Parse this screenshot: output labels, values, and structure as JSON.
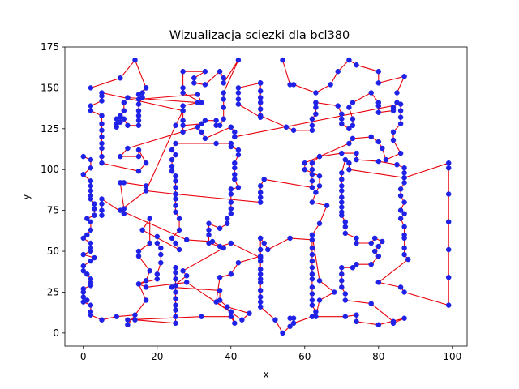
{
  "chart_data": {
    "type": "line",
    "title": "Wizualizacja sciezki dla bcl380",
    "xlabel": "x",
    "ylabel": "y",
    "xlim": [
      -5,
      104
    ],
    "ylim": [
      -8,
      175
    ],
    "xticks": [
      0,
      20,
      40,
      60,
      80,
      100
    ],
    "yticks": [
      0,
      25,
      50,
      75,
      100,
      125,
      150,
      175
    ],
    "grid": false,
    "legend": "none",
    "line_color": "#e8000b",
    "marker_face_color": "#1f22e6",
    "marker_edge_color": "#1f22e6",
    "path": [
      [
        2,
        150
      ],
      [
        10,
        156
      ],
      [
        14,
        167
      ],
      [
        17,
        150
      ],
      [
        15,
        146
      ],
      [
        15,
        143
      ],
      [
        31,
        146
      ],
      [
        32,
        141
      ],
      [
        27,
        147
      ],
      [
        27,
        150
      ],
      [
        27,
        160
      ],
      [
        33,
        160
      ],
      [
        30,
        156
      ],
      [
        30,
        153
      ],
      [
        33,
        152
      ],
      [
        37,
        160
      ],
      [
        38,
        156
      ],
      [
        38,
        153
      ],
      [
        42,
        167
      ],
      [
        38,
        147
      ],
      [
        38,
        143
      ],
      [
        38,
        138
      ],
      [
        38,
        131
      ],
      [
        37,
        127
      ],
      [
        36,
        127
      ],
      [
        36,
        130
      ],
      [
        33,
        130
      ],
      [
        32,
        128
      ],
      [
        27,
        127
      ],
      [
        27,
        123
      ],
      [
        27,
        130
      ],
      [
        27,
        136
      ],
      [
        27,
        139
      ],
      [
        31,
        141
      ],
      [
        12,
        144
      ],
      [
        11,
        141
      ],
      [
        11,
        136
      ],
      [
        10,
        132
      ],
      [
        10,
        129
      ],
      [
        9,
        126
      ],
      [
        9,
        128
      ],
      [
        9,
        131
      ],
      [
        10,
        133
      ],
      [
        11,
        131
      ],
      [
        12,
        127
      ],
      [
        15,
        127
      ],
      [
        15,
        130
      ],
      [
        15,
        133
      ],
      [
        15,
        136
      ],
      [
        15,
        140
      ],
      [
        16,
        144
      ],
      [
        16,
        147
      ],
      [
        17,
        150
      ]
    ],
    "path_b": [
      [
        48,
        153
      ],
      [
        48,
        148
      ],
      [
        48,
        144
      ],
      [
        48,
        141
      ],
      [
        48,
        137
      ],
      [
        48,
        132
      ],
      [
        42,
        140
      ],
      [
        42,
        143
      ],
      [
        42,
        147
      ],
      [
        42,
        150
      ],
      [
        48,
        153
      ]
    ],
    "path_c": [
      [
        54,
        167
      ],
      [
        56,
        152
      ],
      [
        57,
        152
      ],
      [
        63,
        147
      ],
      [
        67,
        152
      ],
      [
        69,
        160
      ],
      [
        72,
        167
      ],
      [
        74,
        164
      ],
      [
        80,
        160
      ],
      [
        80,
        153
      ],
      [
        87,
        157
      ],
      [
        85,
        147
      ],
      [
        85,
        141
      ],
      [
        84,
        138
      ],
      [
        84,
        136
      ],
      [
        80,
        135
      ],
      [
        80,
        139
      ],
      [
        80,
        141
      ],
      [
        78,
        147
      ],
      [
        73,
        141
      ],
      [
        72,
        138
      ],
      [
        73,
        131
      ],
      [
        73,
        127
      ],
      [
        72,
        125
      ],
      [
        70,
        128
      ],
      [
        70,
        131
      ],
      [
        70,
        134
      ],
      [
        69,
        139
      ],
      [
        63,
        141
      ],
      [
        63,
        138
      ],
      [
        63,
        134
      ],
      [
        62,
        131
      ],
      [
        62,
        127
      ],
      [
        62,
        124
      ],
      [
        57,
        124
      ],
      [
        55,
        126
      ],
      [
        48,
        133
      ]
    ],
    "left_col": [
      [
        0,
        108
      ],
      [
        2,
        106
      ],
      [
        2,
        101
      ],
      [
        0,
        97
      ],
      [
        2,
        93
      ],
      [
        2,
        90
      ],
      [
        2,
        87
      ],
      [
        2,
        84
      ],
      [
        2,
        82
      ],
      [
        3,
        79
      ],
      [
        3,
        76
      ],
      [
        3,
        72
      ],
      [
        1,
        70
      ],
      [
        2,
        68
      ],
      [
        2,
        63
      ],
      [
        1,
        60
      ],
      [
        0,
        58
      ],
      [
        2,
        55
      ],
      [
        2,
        52
      ],
      [
        2,
        50
      ],
      [
        0,
        48
      ],
      [
        3,
        46
      ],
      [
        2,
        44
      ],
      [
        0,
        41
      ],
      [
        0,
        38
      ],
      [
        1,
        36
      ],
      [
        2,
        33
      ],
      [
        2,
        31
      ],
      [
        2,
        29
      ],
      [
        0,
        27
      ],
      [
        0,
        25
      ],
      [
        0,
        22
      ],
      [
        1,
        20
      ],
      [
        0,
        19
      ],
      [
        2,
        17
      ],
      [
        2,
        13
      ],
      [
        2,
        11
      ],
      [
        5,
        8
      ],
      [
        9,
        10
      ],
      [
        14,
        11
      ],
      [
        14,
        8
      ],
      [
        25,
        6
      ],
      [
        25,
        10
      ],
      [
        25,
        14
      ],
      [
        25,
        17
      ],
      [
        25,
        21
      ],
      [
        25,
        25
      ],
      [
        25,
        29
      ],
      [
        25,
        33
      ],
      [
        25,
        37
      ],
      [
        25,
        40
      ]
    ],
    "extra_points": [
      [
        5,
        72
      ],
      [
        5,
        75
      ],
      [
        5,
        79
      ],
      [
        5,
        82
      ],
      [
        11,
        73
      ],
      [
        11,
        76
      ],
      [
        10,
        92
      ],
      [
        11,
        92
      ],
      [
        17,
        90
      ],
      [
        17,
        87
      ],
      [
        25,
        85
      ],
      [
        25,
        82
      ],
      [
        25,
        78
      ],
      [
        25,
        74
      ],
      [
        26,
        70
      ],
      [
        26,
        63
      ],
      [
        24,
        58
      ],
      [
        25,
        55
      ],
      [
        26,
        51
      ],
      [
        16,
        63
      ],
      [
        18,
        70
      ],
      [
        18,
        55
      ],
      [
        15,
        50
      ],
      [
        15,
        47
      ],
      [
        18,
        38
      ],
      [
        17,
        32
      ],
      [
        15,
        30
      ],
      [
        17,
        20
      ],
      [
        12,
        5
      ],
      [
        12,
        8
      ],
      [
        32,
        10
      ],
      [
        40,
        10
      ],
      [
        41,
        6
      ],
      [
        40,
        13
      ],
      [
        36,
        19
      ],
      [
        37,
        34
      ],
      [
        40,
        36
      ],
      [
        42,
        43
      ],
      [
        48,
        47
      ],
      [
        48,
        51
      ],
      [
        48,
        44
      ],
      [
        48,
        39
      ],
      [
        48,
        36
      ],
      [
        48,
        33
      ],
      [
        48,
        31
      ],
      [
        48,
        26
      ],
      [
        48,
        22
      ],
      [
        48,
        19
      ],
      [
        48,
        16
      ],
      [
        52,
        8
      ],
      [
        54,
        0
      ],
      [
        56,
        4
      ],
      [
        56,
        9
      ],
      [
        57,
        9
      ],
      [
        57,
        6
      ],
      [
        62,
        10
      ],
      [
        63,
        13
      ],
      [
        62,
        17
      ],
      [
        62,
        20
      ],
      [
        62,
        24
      ],
      [
        62,
        28
      ],
      [
        62,
        33
      ],
      [
        62,
        36
      ],
      [
        62,
        40
      ],
      [
        62,
        44
      ],
      [
        62,
        48
      ],
      [
        62,
        52
      ],
      [
        62,
        57
      ],
      [
        56,
        58
      ],
      [
        50,
        51
      ],
      [
        49,
        55
      ],
      [
        48,
        58
      ],
      [
        48,
        46
      ],
      [
        40,
        55
      ],
      [
        37,
        53
      ],
      [
        34,
        55
      ],
      [
        34,
        60
      ],
      [
        34,
        63
      ],
      [
        34,
        67
      ],
      [
        37,
        64
      ],
      [
        39,
        67
      ],
      [
        39,
        70
      ],
      [
        40,
        73
      ],
      [
        40,
        76
      ],
      [
        40,
        80
      ],
      [
        40,
        85
      ],
      [
        40,
        88
      ],
      [
        42,
        89
      ],
      [
        41,
        94
      ],
      [
        41,
        97
      ],
      [
        41,
        101
      ],
      [
        41,
        104
      ],
      [
        42,
        109
      ],
      [
        42,
        112
      ],
      [
        40,
        114
      ],
      [
        40,
        116
      ],
      [
        36,
        116
      ],
      [
        25,
        116
      ],
      [
        24,
        112
      ],
      [
        25,
        109
      ],
      [
        24,
        106
      ],
      [
        24,
        102
      ],
      [
        24,
        99
      ],
      [
        25,
        96
      ],
      [
        25,
        93
      ],
      [
        25,
        89
      ],
      [
        25,
        85
      ],
      [
        48,
        80
      ],
      [
        48,
        83
      ],
      [
        48,
        86
      ],
      [
        48,
        90
      ],
      [
        49,
        94
      ],
      [
        62,
        89
      ],
      [
        62,
        93
      ],
      [
        62,
        97
      ],
      [
        62,
        100
      ],
      [
        62,
        104
      ],
      [
        64,
        108
      ],
      [
        70,
        110
      ],
      [
        74,
        110
      ],
      [
        74,
        106
      ],
      [
        80,
        105
      ],
      [
        85,
        103
      ],
      [
        87,
        101
      ],
      [
        87,
        98
      ],
      [
        87,
        95
      ],
      [
        99,
        104
      ],
      [
        99,
        101
      ],
      [
        99,
        85
      ],
      [
        99,
        68
      ],
      [
        99,
        51
      ],
      [
        99,
        34
      ],
      [
        99,
        17
      ],
      [
        87,
        25
      ],
      [
        86,
        28
      ],
      [
        80,
        31
      ],
      [
        88,
        45
      ],
      [
        87,
        48
      ],
      [
        87,
        52
      ],
      [
        87,
        58
      ],
      [
        87,
        60
      ],
      [
        87,
        65
      ],
      [
        86,
        70
      ],
      [
        87,
        73
      ],
      [
        86,
        75
      ],
      [
        87,
        80
      ],
      [
        86,
        84
      ],
      [
        86,
        88
      ],
      [
        87,
        92
      ],
      [
        87,
        95
      ],
      [
        72,
        100
      ],
      [
        72,
        104
      ],
      [
        71,
        106
      ],
      [
        70,
        98
      ],
      [
        70,
        94
      ],
      [
        70,
        90
      ],
      [
        70,
        87
      ],
      [
        70,
        83
      ],
      [
        70,
        80
      ],
      [
        70,
        77
      ],
      [
        70,
        74
      ],
      [
        70,
        72
      ],
      [
        71,
        68
      ],
      [
        71,
        65
      ],
      [
        71,
        61
      ],
      [
        74,
        58
      ],
      [
        74,
        55
      ],
      [
        78,
        55
      ],
      [
        79,
        58
      ],
      [
        81,
        56
      ],
      [
        80,
        53
      ],
      [
        79,
        50
      ],
      [
        80,
        47
      ],
      [
        78,
        42
      ],
      [
        74,
        42
      ],
      [
        73,
        40
      ],
      [
        70,
        40
      ],
      [
        70,
        36
      ],
      [
        70,
        32
      ],
      [
        70,
        28
      ],
      [
        71,
        24
      ],
      [
        71,
        20
      ],
      [
        78,
        18
      ],
      [
        84,
        7
      ],
      [
        84,
        6
      ],
      [
        87,
        9
      ],
      [
        80,
        5
      ],
      [
        74,
        7
      ],
      [
        74,
        11
      ],
      [
        71,
        10
      ],
      [
        63,
        10
      ],
      [
        64,
        20
      ],
      [
        68,
        25
      ],
      [
        64,
        32
      ],
      [
        62,
        60
      ],
      [
        64,
        67
      ],
      [
        66,
        78
      ],
      [
        62,
        80
      ],
      [
        63,
        86
      ],
      [
        64,
        90
      ],
      [
        64,
        96
      ],
      [
        60,
        100
      ],
      [
        60,
        104
      ],
      [
        64,
        108
      ],
      [
        72,
        116
      ],
      [
        73,
        119
      ],
      [
        78,
        120
      ],
      [
        80,
        117
      ],
      [
        81,
        113
      ],
      [
        82,
        106
      ],
      [
        86,
        110
      ],
      [
        84,
        118
      ],
      [
        84,
        123
      ],
      [
        86,
        128
      ],
      [
        86,
        132
      ],
      [
        86,
        136
      ],
      [
        86,
        140
      ],
      [
        41,
        120
      ],
      [
        41,
        123
      ],
      [
        40,
        126
      ],
      [
        33,
        119
      ],
      [
        32,
        123
      ],
      [
        31,
        126
      ],
      [
        12,
        113
      ],
      [
        10,
        108
      ],
      [
        15,
        108
      ],
      [
        15,
        112
      ],
      [
        17,
        104
      ],
      [
        15,
        99
      ],
      [
        5,
        104
      ],
      [
        5,
        108
      ],
      [
        5,
        113
      ],
      [
        5,
        116
      ],
      [
        5,
        120
      ],
      [
        5,
        124
      ],
      [
        5,
        128
      ],
      [
        5,
        133
      ],
      [
        2,
        136
      ],
      [
        2,
        139
      ],
      [
        5,
        142
      ],
      [
        5,
        145
      ],
      [
        5,
        147
      ],
      [
        27,
        136
      ],
      [
        25,
        127
      ],
      [
        17,
        87
      ],
      [
        10,
        75
      ],
      [
        28,
        57
      ],
      [
        35,
        56
      ],
      [
        38,
        52
      ],
      [
        27,
        38
      ],
      [
        28,
        35
      ],
      [
        24,
        28
      ],
      [
        37,
        26
      ],
      [
        37,
        20
      ],
      [
        39,
        16
      ],
      [
        45,
        12
      ],
      [
        43,
        8
      ],
      [
        28,
        31
      ],
      [
        17,
        28
      ],
      [
        15,
        30
      ],
      [
        20,
        33
      ],
      [
        20,
        36
      ],
      [
        21,
        43
      ],
      [
        21,
        48
      ],
      [
        21,
        52
      ],
      [
        20,
        55
      ],
      [
        20,
        59
      ]
    ]
  }
}
